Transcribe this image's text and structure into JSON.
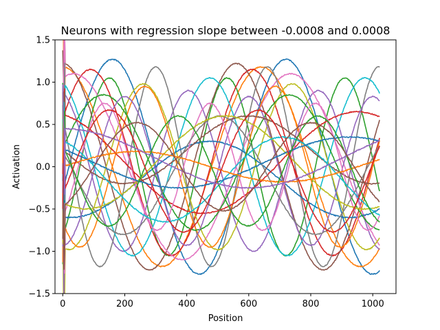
{
  "chart_data": {
    "type": "line",
    "title": "Neurons with regression slope between -0.0008 and 0.0008",
    "xlabel": "Position",
    "ylabel": "Activation",
    "xlim": [
      -25,
      1075
    ],
    "ylim": [
      -1.5,
      1.5
    ],
    "xticks": [
      0,
      200,
      400,
      600,
      800,
      1000
    ],
    "yticks": [
      -1.5,
      -1.0,
      -0.5,
      0.0,
      0.5,
      1.0,
      1.5
    ],
    "xtick_labels": [
      "0",
      "200",
      "400",
      "600",
      "800",
      "1000"
    ],
    "ytick_labels": [
      "−1.5",
      "−1.0",
      "−0.5",
      "0.0",
      "0.5",
      "1.0",
      "1.5"
    ],
    "grid": false,
    "legend": "none",
    "x_range": [
      0,
      1023
    ],
    "series": [
      {
        "color": "#1f77b4",
        "amplitude": 1.27,
        "period": 560,
        "phase": 20,
        "offset": 0.0
      },
      {
        "color": "#ff7f0e",
        "amplitude": 1.18,
        "period": 640,
        "phase": 480,
        "offset": 0.0
      },
      {
        "color": "#2ca02c",
        "amplitude": 1.05,
        "period": 380,
        "phase": 55,
        "offset": 0.0
      },
      {
        "color": "#d62728",
        "amplitude": 1.1,
        "period": 520,
        "phase": 480,
        "offset": 0.05
      },
      {
        "color": "#9467bd",
        "amplitude": 0.95,
        "period": 420,
        "phase": 300,
        "offset": -0.05
      },
      {
        "color": "#8c564b",
        "amplitude": 1.22,
        "period": 560,
        "phase": 420,
        "offset": 0.0
      },
      {
        "color": "#e377c2",
        "amplitude": 1.1,
        "period": 700,
        "phase": 560,
        "offset": 0.0
      },
      {
        "color": "#7f7f7f",
        "amplitude": 1.18,
        "period": 360,
        "phase": 210,
        "offset": 0.0
      },
      {
        "color": "#bcbd22",
        "amplitude": 0.98,
        "period": 480,
        "phase": 140,
        "offset": 0.0
      },
      {
        "color": "#17becf",
        "amplitude": 1.05,
        "period": 500,
        "phase": 350,
        "offset": 0.0
      },
      {
        "color": "#1f77b4",
        "amplitude": 0.45,
        "period": 900,
        "phase": 250,
        "offset": -0.15
      },
      {
        "color": "#ff7f0e",
        "amplitude": 0.95,
        "period": 420,
        "phase": 160,
        "offset": 0.0
      },
      {
        "color": "#2ca02c",
        "amplitude": 0.8,
        "period": 600,
        "phase": 580,
        "offset": 0.05
      },
      {
        "color": "#d62728",
        "amplitude": 0.6,
        "period": 1000,
        "phase": 700,
        "offset": 0.05
      },
      {
        "color": "#9467bd",
        "amplitude": 0.88,
        "period": 400,
        "phase": 100,
        "offset": -0.05
      },
      {
        "color": "#8c564b",
        "amplitude": 0.4,
        "period": 800,
        "phase": 400,
        "offset": 0.2
      },
      {
        "color": "#e377c2",
        "amplitude": 0.75,
        "period": 340,
        "phase": 50,
        "offset": 0.0
      },
      {
        "color": "#7f7f7f",
        "amplitude": 0.7,
        "period": 620,
        "phase": 350,
        "offset": -0.1
      },
      {
        "color": "#bcbd22",
        "amplitude": 0.55,
        "period": 900,
        "phase": 300,
        "offset": 0.05
      },
      {
        "color": "#17becf",
        "amplitude": 0.5,
        "period": 760,
        "phase": 520,
        "offset": -0.15
      },
      {
        "color": "#1f77b4",
        "amplitude": 0.3,
        "period": 1100,
        "phase": 650,
        "offset": 0.05
      },
      {
        "color": "#ff7f0e",
        "amplitude": 0.18,
        "period": 950,
        "phase": 0,
        "offset": 0.0
      },
      {
        "color": "#2ca02c",
        "amplitude": 0.65,
        "period": 450,
        "phase": 260,
        "offset": -0.05
      },
      {
        "color": "#d62728",
        "amplitude": 0.72,
        "period": 480,
        "phase": 30,
        "offset": -0.05
      },
      {
        "color": "#9467bd",
        "amplitude": 0.35,
        "period": 1200,
        "phase": 900,
        "offset": 0.1
      },
      {
        "color": "#8c564b",
        "amplitude": 0.52,
        "period": 560,
        "phase": 100,
        "offset": 0.0
      }
    ]
  }
}
